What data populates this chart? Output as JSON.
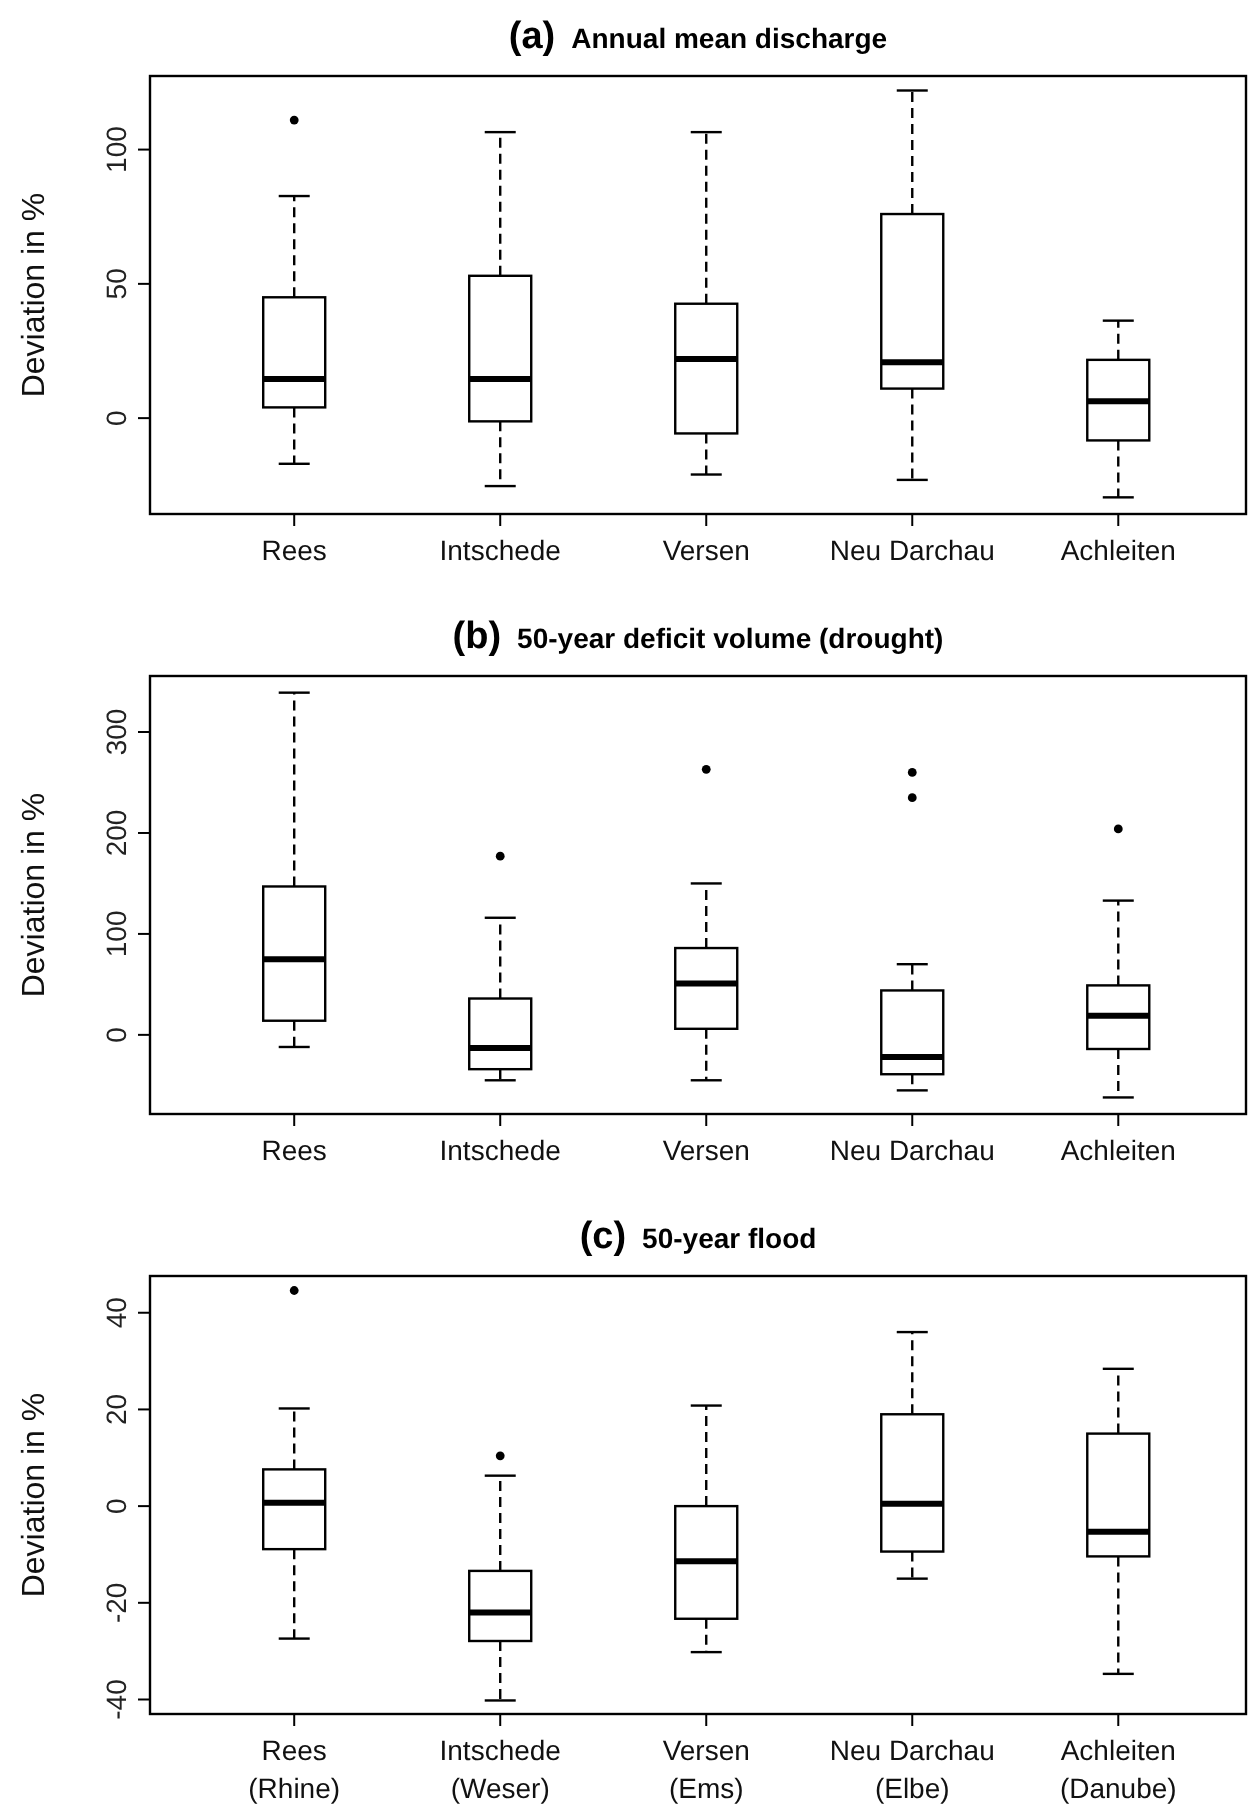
{
  "chart_data": [
    {
      "type": "box",
      "title": "(a) Annual mean discharge",
      "ylabel": "Deviation in %",
      "categories": [
        "Rees",
        "Intschede",
        "Versen",
        "Neu Darchau",
        "Achleiten"
      ],
      "ylim": [
        -35.7,
        127.4
      ],
      "yticks": [
        0,
        50,
        100
      ],
      "boxes": [
        {
          "low": -17,
          "q1": 4,
          "median": 14.6,
          "q3": 45,
          "high": 82.7,
          "outliers": [
            111
          ]
        },
        {
          "low": -25.3,
          "q1": -1.2,
          "median": 14.6,
          "q3": 53,
          "high": 106.5
        },
        {
          "low": -21,
          "q1": -5.7,
          "median": 22,
          "q3": 42.6,
          "high": 106.5
        },
        {
          "low": -23,
          "q1": 11,
          "median": 20.8,
          "q3": 76,
          "high": 122
        },
        {
          "low": -29.5,
          "q1": -8.3,
          "median": 6.3,
          "q3": 21.7,
          "high": 36.3
        }
      ]
    },
    {
      "type": "box",
      "title": "(b) 50-year deficit volume (drought)",
      "ylabel": "Deviation in %",
      "categories": [
        "Rees",
        "Intschede",
        "Versen",
        "Neu Darchau",
        "Achleiten"
      ],
      "ylim": [
        -78.4,
        355.5
      ],
      "yticks": [
        0,
        100,
        200,
        300
      ],
      "boxes": [
        {
          "low": -12,
          "q1": 14,
          "median": 75,
          "q3": 147,
          "high": 339
        },
        {
          "low": -45,
          "q1": -34,
          "median": -13,
          "q3": 36,
          "high": 116,
          "outliers": [
            177
          ]
        },
        {
          "low": -45,
          "q1": 6,
          "median": 51,
          "q3": 86,
          "high": 150,
          "outliers": [
            263
          ]
        },
        {
          "low": -55,
          "q1": -39,
          "median": -22,
          "q3": 44,
          "high": 70,
          "outliers": [
            260,
            235
          ]
        },
        {
          "low": -62,
          "q1": -14,
          "median": 19,
          "q3": 49,
          "high": 133,
          "outliers": [
            204
          ]
        }
      ]
    },
    {
      "type": "box",
      "title": "(c) 50-year flood",
      "ylabel": "Deviation in %",
      "categories": [
        "Rees\n(Rhine)",
        "Intschede\n(Weser)",
        "Versen\n(Ems)",
        "Neu Darchau\n(Elbe)",
        "Achleiten\n(Danube)"
      ],
      "ylim": [
        -43,
        47.6
      ],
      "yticks": [
        -40,
        -20,
        0,
        20,
        40
      ],
      "boxes": [
        {
          "low": -27.4,
          "q1": -8.9,
          "median": 0.7,
          "q3": 7.6,
          "high": 20.2,
          "outliers": [
            44.6
          ]
        },
        {
          "low": -40.2,
          "q1": -27.9,
          "median": -22,
          "q3": -13.4,
          "high": 6.3,
          "outliers": [
            10.4
          ]
        },
        {
          "low": -30.2,
          "q1": -23.3,
          "median": -11.4,
          "q3": 0,
          "high": 20.8
        },
        {
          "low": -15,
          "q1": -9.4,
          "median": 0.5,
          "q3": 19,
          "high": 36
        },
        {
          "low": -34.7,
          "q1": -10.4,
          "median": -5.3,
          "q3": 15,
          "high": 28.4
        }
      ]
    }
  ]
}
